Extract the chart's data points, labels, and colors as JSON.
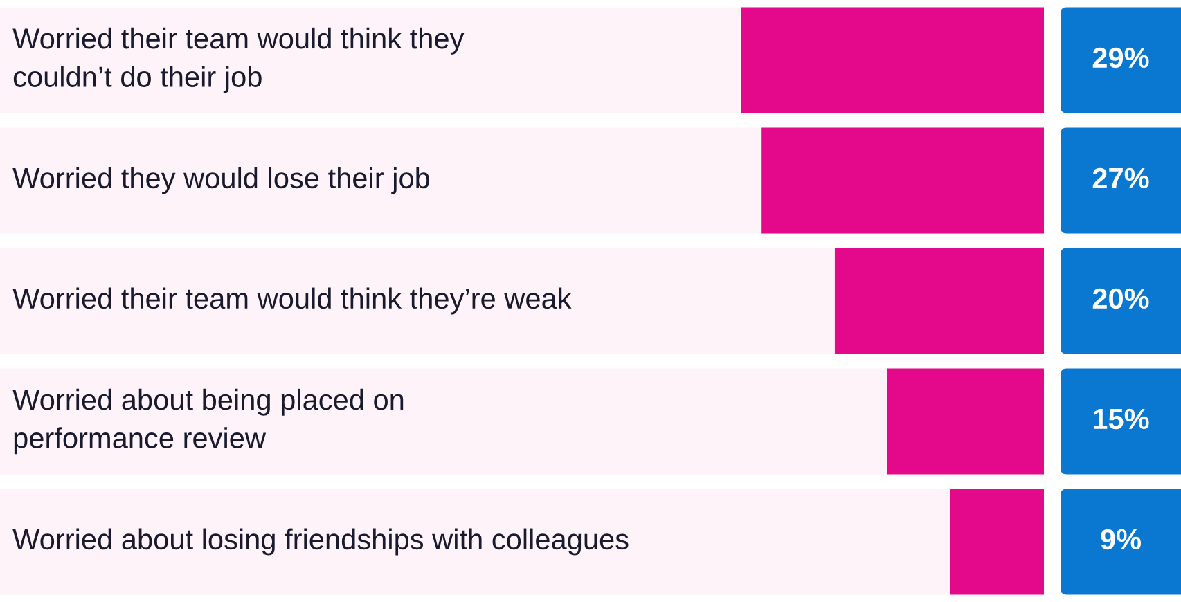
{
  "chart_data": {
    "type": "bar",
    "orientation": "horizontal",
    "categories": [
      "Worried their team would think they\ncouldn’t do their job",
      "Worried they would lose their job",
      "Worried their team would think they’re weak",
      "Worried about being placed on\nperformance review",
      "Worried about losing friendships with colleagues"
    ],
    "values": [
      29,
      27,
      20,
      15,
      9
    ],
    "value_labels": [
      "29%",
      "27%",
      "20%",
      "15%",
      "9%"
    ],
    "color": "#e3098a"
  }
}
